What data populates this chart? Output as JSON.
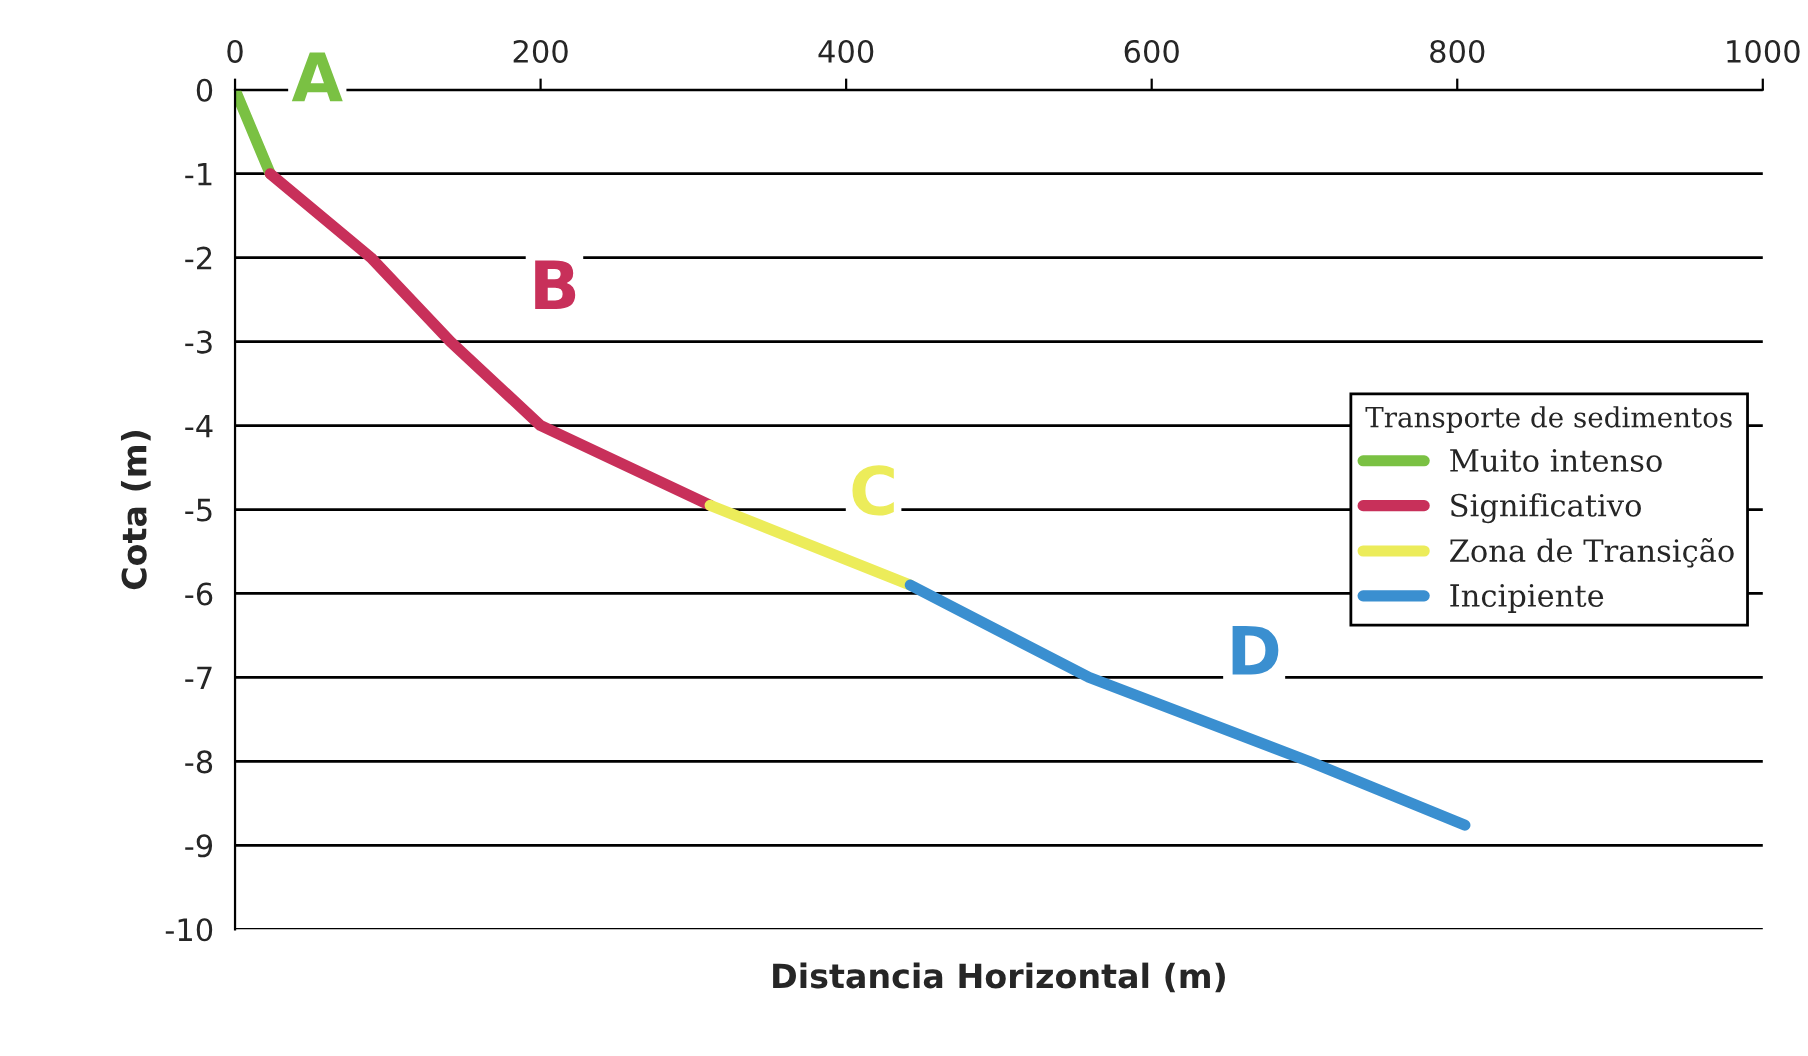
{
  "chart_data": {
    "type": "line",
    "xlabel": "Distancia Horizontal (m)",
    "ylabel": "Cota (m)",
    "legend_title": "Transporte de sedimentos",
    "series": [
      {
        "name": "Muito intenso",
        "color": "#7ac143",
        "x": [
          0,
          23
        ],
        "values": [
          0,
          -1
        ]
      },
      {
        "name": "Significativo",
        "color": "#c8305a",
        "x": [
          23,
          89,
          141,
          200,
          311
        ],
        "values": [
          -1,
          -2,
          -3,
          -4,
          -4.95
        ]
      },
      {
        "name": "Zona de Transição",
        "color": "#ecec5a",
        "x": [
          311,
          442
        ],
        "values": [
          -4.95,
          -5.9
        ]
      },
      {
        "name": "Incipiente",
        "color": "#3a8fd0",
        "x": [
          442,
          559,
          703,
          805
        ],
        "values": [
          -5.9,
          -7,
          -8,
          -8.76
        ]
      }
    ],
    "annotations": [
      "A",
      "B",
      "C",
      "D"
    ],
    "xlim": [
      0,
      1000
    ],
    "xticks": [
      0,
      200,
      400,
      600,
      800,
      1000
    ],
    "ylim": [
      -10,
      0
    ],
    "yticks": [
      0,
      -1,
      -2,
      -3,
      -4,
      -5,
      -6,
      -7,
      -8,
      -9,
      -10
    ],
    "grid": "y",
    "legend": "center right",
    "line_style": "solid",
    "marker": "none"
  }
}
